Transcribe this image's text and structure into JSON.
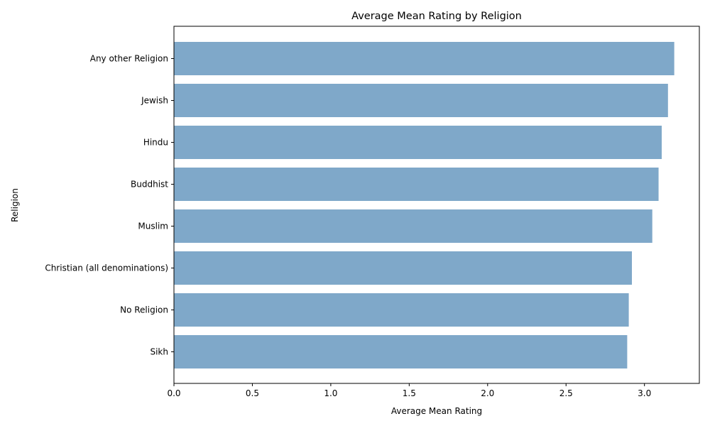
{
  "chart_data": {
    "type": "bar",
    "orientation": "horizontal",
    "title": "Average Mean Rating by Religion",
    "xlabel": "Average Mean Rating",
    "ylabel": "Religion",
    "categories": [
      "Any other Religion",
      "Jewish",
      "Hindu",
      "Buddhist",
      "Muslim",
      "Christian (all denominations)",
      "No Religion",
      "Sikh"
    ],
    "values": [
      3.19,
      3.15,
      3.11,
      3.09,
      3.05,
      2.92,
      2.9,
      2.89
    ],
    "xlim": [
      0,
      3.35
    ],
    "xticks": [
      "0.0",
      "0.5",
      "1.0",
      "1.5",
      "2.0",
      "2.5",
      "3.0"
    ],
    "grid": false,
    "bar_color": "#7fa8c9"
  }
}
